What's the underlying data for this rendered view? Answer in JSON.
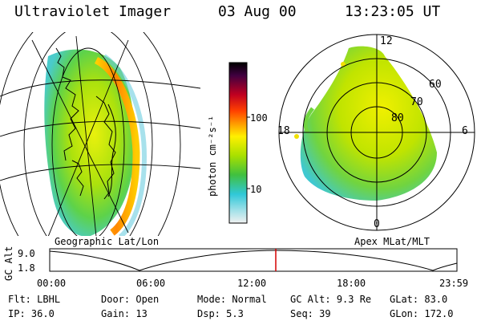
{
  "header": {
    "title": "Ultraviolet Imager",
    "date": "03 Aug 00",
    "time": "13:23:05 UT"
  },
  "left_panel": {
    "caption": "Geographic Lat/Lon"
  },
  "right_panel": {
    "caption": "Apex MLat/MLT",
    "mlt_labels": {
      "top": "12",
      "left": "18",
      "right": "6",
      "bottom": "0"
    },
    "mlat_labels": [
      "60",
      "70",
      "80"
    ]
  },
  "colorbar": {
    "unit_label": "photon cm⁻²s⁻¹",
    "tick_labels": [
      "100",
      "10"
    ]
  },
  "timeline": {
    "ylabel": "GC Alt",
    "y_ticks": [
      "9.0",
      "1.8"
    ],
    "x_ticks": [
      "00:00",
      "06:00",
      "12:00",
      "18:00",
      "23:59"
    ],
    "current_marker_color": "#d40000"
  },
  "status": {
    "row1": [
      {
        "label": "Flt:",
        "value": "LBHL"
      },
      {
        "label": "Door:",
        "value": "Open"
      },
      {
        "label": "Mode:",
        "value": "Normal"
      },
      {
        "label": "GC Alt:",
        "value": "9.3 Re"
      },
      {
        "label": "GLat:",
        "value": "83.0"
      }
    ],
    "row2": [
      {
        "label": "IP:",
        "value": "36.0"
      },
      {
        "label": "Gain:",
        "value": "13"
      },
      {
        "label": "Dsp:",
        "value": "5.3"
      },
      {
        "label": "Seq:",
        "value": "39"
      },
      {
        "label": "GLon:",
        "value": "172.0"
      }
    ]
  }
}
